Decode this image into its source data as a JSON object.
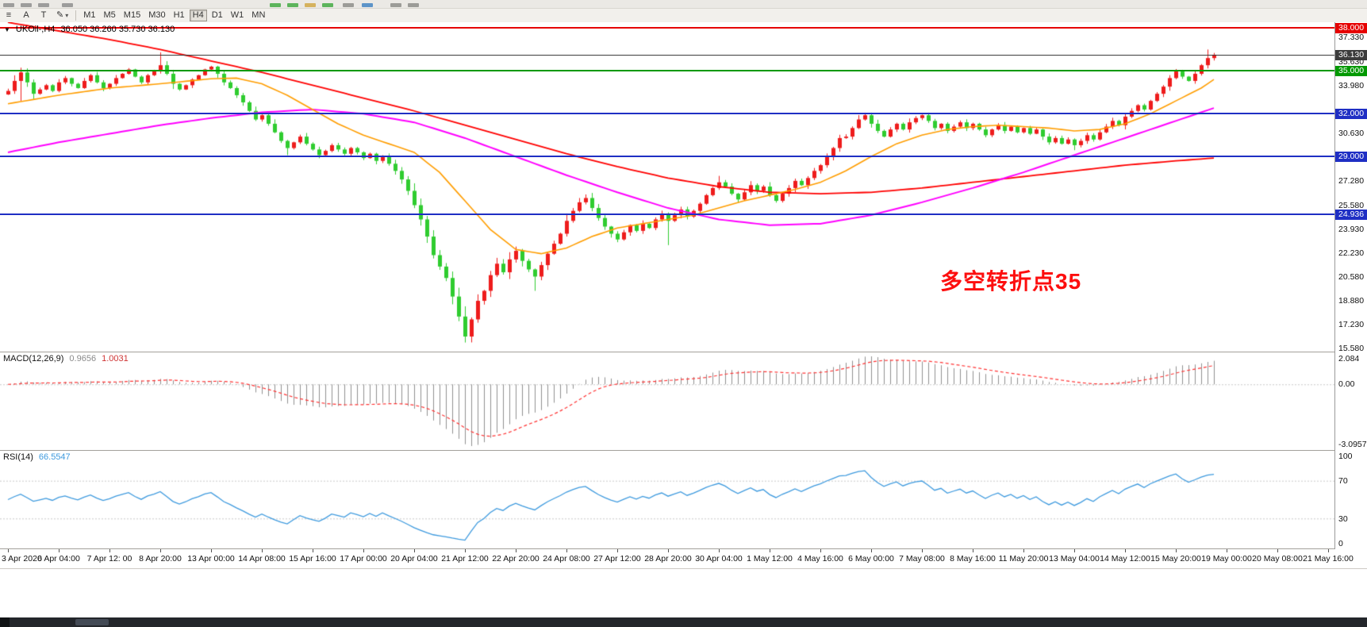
{
  "toolbar": {
    "tools": [
      {
        "name": "chart-list",
        "glyph": "≡"
      },
      {
        "name": "text-label",
        "glyph": "A"
      },
      {
        "name": "text-box",
        "glyph": "T"
      },
      {
        "name": "draw-tools",
        "glyph": "✎",
        "dropdown": "▾"
      }
    ],
    "timeframes": [
      "M1",
      "M5",
      "M15",
      "M30",
      "H1",
      "H4",
      "D1",
      "W1",
      "MN"
    ],
    "active_timeframe": "H4"
  },
  "chart": {
    "menu_arrow": "▼",
    "symbol_label": "UKOil-,H4",
    "quote": "36.050 36.260 35.730 36.130",
    "annotation": "多空转折点35",
    "price_scale_labels": [
      {
        "text": "37.330",
        "price": 37.33
      },
      {
        "text": "35.630",
        "price": 35.63
      },
      {
        "text": "33.980",
        "price": 33.98
      },
      {
        "text": "30.630",
        "price": 30.63
      },
      {
        "text": "27.280",
        "price": 27.28
      },
      {
        "text": "25.580",
        "price": 25.58
      },
      {
        "text": "23.930",
        "price": 23.93
      },
      {
        "text": "22.230",
        "price": 22.23
      },
      {
        "text": "20.580",
        "price": 20.58
      },
      {
        "text": "18.880",
        "price": 18.88
      },
      {
        "text": "17.230",
        "price": 17.23
      },
      {
        "text": "15.580",
        "price": 15.58
      }
    ],
    "time_labels": [
      "3 Apr 2020",
      "6 Apr 04:00",
      "7 Apr 12: 00",
      "8 Apr 20:00",
      "13 Apr 00:00",
      "14 Apr 08:00",
      "15 Apr 16:00",
      "17 Apr 00:00",
      "20 Apr 04:00",
      "21 Apr 12:00",
      "22 Apr 20:00",
      "24 Apr 08:00",
      "27 Apr 12:00",
      "28 Apr 20:00",
      "30 Apr 04:00",
      "1 May 12:00",
      "4 May 16:00",
      "6 May 00:00",
      "7 May 08:00",
      "8 May 16:00",
      "11 May 20:00",
      "13 May 04:00",
      "14 May 12:00",
      "15 May 20:00",
      "19 May 00:00",
      "20 May 08:00",
      "21 May 16:00"
    ]
  },
  "indicators": {
    "macd": {
      "label": "MACD(12,26,9)",
      "value1": "0.9656",
      "value2": "1.0031",
      "scale_top": "2.084",
      "scale_zero": "0.00",
      "scale_bottom": "-3.0957"
    },
    "rsi": {
      "label": "RSI(14)",
      "value": "66.5547",
      "scale_100": "100",
      "scale_70": "70",
      "scale_30": "30",
      "scale_0": "0"
    }
  },
  "colors": {
    "bull": "#ee1c1c",
    "bear": "#2fcc2f",
    "ma_fast": "#ff9d00",
    "ma_mid": "#ff00ff",
    "ma_slow": "#ff0000",
    "macd_hist": "#909090",
    "macd_signal": "#ff3333",
    "rsi_line": "#3e9ade",
    "level_red": "#e60000",
    "level_green": "#009900",
    "level_blue": "#1f2fc4",
    "current": "#3c3c3c"
  },
  "chart_data": {
    "type": "candlestick",
    "symbol": "UKOil-",
    "timeframe": "H4",
    "ylim": [
      15.4,
      38.3
    ],
    "closes": [
      33.6,
      34.3,
      34.9,
      34.2,
      33.4,
      33.7,
      34.0,
      33.6,
      34.2,
      34.5,
      34.1,
      33.8,
      34.3,
      34.7,
      34.2,
      33.8,
      34.1,
      34.5,
      34.8,
      35.1,
      34.6,
      34.2,
      34.7,
      35.0,
      35.4,
      34.8,
      34.1,
      33.7,
      34.0,
      34.4,
      34.7,
      35.1,
      35.3,
      34.8,
      34.2,
      33.8,
      33.3,
      32.8,
      32.2,
      31.6,
      31.9,
      31.3,
      30.7,
      30.1,
      29.6,
      30.0,
      30.4,
      29.9,
      29.5,
      29.1,
      29.4,
      29.8,
      29.5,
      29.2,
      29.6,
      29.3,
      28.9,
      29.2,
      28.7,
      29.0,
      28.5,
      28.0,
      27.4,
      26.6,
      25.6,
      24.6,
      23.4,
      22.1,
      21.3,
      20.5,
      19.2,
      17.8,
      16.4,
      17.6,
      18.9,
      19.6,
      20.7,
      21.5,
      20.9,
      21.8,
      22.4,
      21.7,
      21.1,
      20.6,
      21.4,
      22.2,
      22.9,
      23.6,
      24.5,
      25.2,
      25.8,
      26.1,
      25.4,
      24.7,
      24.1,
      23.6,
      23.2,
      23.7,
      24.2,
      23.8,
      24.3,
      24.0,
      24.6,
      25.0,
      24.5,
      24.9,
      25.3,
      24.8,
      25.2,
      25.7,
      26.3,
      26.8,
      27.2,
      26.9,
      26.4,
      26.0,
      26.5,
      27.0,
      26.6,
      26.9,
      26.3,
      25.9,
      26.4,
      26.8,
      27.3,
      27.0,
      27.5,
      28.0,
      28.4,
      29.0,
      29.6,
      30.3,
      30.4,
      31.0,
      31.6,
      31.9,
      31.3,
      30.8,
      30.4,
      30.9,
      31.3,
      30.9,
      31.4,
      31.7,
      31.9,
      31.5,
      31.0,
      31.3,
      30.8,
      31.1,
      31.4,
      31.0,
      31.3,
      30.9,
      30.5,
      30.9,
      31.2,
      30.8,
      31.1,
      30.7,
      31.0,
      30.6,
      30.9,
      30.4,
      30.0,
      30.3,
      29.9,
      30.2,
      29.8,
      30.1,
      30.5,
      30.2,
      30.7,
      31.1,
      31.5,
      31.2,
      31.8,
      32.2,
      32.6,
      32.3,
      32.9,
      33.4,
      33.9,
      34.5,
      35.0,
      34.6,
      34.3,
      34.8,
      35.4,
      35.9,
      36.13
    ],
    "extremes": [
      {
        "i": 2,
        "low": 32.9
      },
      {
        "i": 24,
        "high": 36.3
      },
      {
        "i": 44,
        "low": 29.1
      },
      {
        "i": 72,
        "low": 15.98
      },
      {
        "i": 83,
        "low": 19.6
      },
      {
        "i": 91,
        "high": 26.35
      },
      {
        "i": 104,
        "low": 22.8
      },
      {
        "i": 112,
        "high": 27.65
      },
      {
        "i": 135,
        "high": 32.05
      },
      {
        "i": 144,
        "high": 31.95
      },
      {
        "i": 168,
        "low": 29.45
      },
      {
        "i": 189,
        "high": 36.5
      },
      {
        "i": 190,
        "high": 36.26,
        "low": 35.73
      }
    ],
    "levels": [
      {
        "label": "38.000",
        "price": 38.0,
        "color": "#e60000"
      },
      {
        "label": "35.000",
        "price": 35.0,
        "color": "#009900"
      },
      {
        "label": "32.000",
        "price": 32.0,
        "color": "#1f2fc4"
      },
      {
        "label": "29.000",
        "price": 29.0,
        "color": "#1f2fc4"
      },
      {
        "label": "24.936",
        "price": 24.936,
        "color": "#1f2fc4"
      },
      {
        "label": "36.130",
        "price": 36.13,
        "color": "#3c3c3c",
        "current": true
      }
    ],
    "ma_orange": [
      [
        0,
        32.7
      ],
      [
        8,
        33.3
      ],
      [
        16,
        33.8
      ],
      [
        24,
        34.1
      ],
      [
        32,
        34.45
      ],
      [
        36,
        34.5
      ],
      [
        40,
        34.1
      ],
      [
        44,
        33.3
      ],
      [
        48,
        32.3
      ],
      [
        52,
        31.3
      ],
      [
        56,
        30.5
      ],
      [
        60,
        29.9
      ],
      [
        64,
        29.3
      ],
      [
        68,
        27.9
      ],
      [
        72,
        25.9
      ],
      [
        76,
        23.9
      ],
      [
        80,
        22.5
      ],
      [
        84,
        22.2
      ],
      [
        88,
        22.6
      ],
      [
        92,
        23.4
      ],
      [
        96,
        24.0
      ],
      [
        100,
        24.3
      ],
      [
        104,
        24.6
      ],
      [
        108,
        24.9
      ],
      [
        112,
        25.4
      ],
      [
        116,
        25.9
      ],
      [
        120,
        26.3
      ],
      [
        124,
        26.7
      ],
      [
        128,
        27.2
      ],
      [
        132,
        28.0
      ],
      [
        136,
        29.0
      ],
      [
        140,
        29.9
      ],
      [
        144,
        30.5
      ],
      [
        148,
        30.9
      ],
      [
        152,
        31.1
      ],
      [
        156,
        31.2
      ],
      [
        160,
        31.1
      ],
      [
        164,
        31.0
      ],
      [
        168,
        30.8
      ],
      [
        172,
        30.9
      ],
      [
        176,
        31.3
      ],
      [
        180,
        32.0
      ],
      [
        184,
        32.9
      ],
      [
        188,
        33.8
      ],
      [
        190,
        34.4
      ]
    ],
    "ma_magenta": [
      [
        0,
        29.3
      ],
      [
        8,
        30.0
      ],
      [
        16,
        30.6
      ],
      [
        24,
        31.2
      ],
      [
        32,
        31.7
      ],
      [
        40,
        32.1
      ],
      [
        48,
        32.3
      ],
      [
        56,
        32.0
      ],
      [
        64,
        31.4
      ],
      [
        72,
        30.3
      ],
      [
        80,
        29.0
      ],
      [
        88,
        27.7
      ],
      [
        96,
        26.5
      ],
      [
        104,
        25.4
      ],
      [
        112,
        24.6
      ],
      [
        120,
        24.2
      ],
      [
        128,
        24.3
      ],
      [
        136,
        24.9
      ],
      [
        144,
        25.8
      ],
      [
        152,
        26.8
      ],
      [
        160,
        27.9
      ],
      [
        168,
        29.1
      ],
      [
        176,
        30.3
      ],
      [
        184,
        31.5
      ],
      [
        190,
        32.4
      ]
    ],
    "ma_red": [
      [
        0,
        38.4
      ],
      [
        8,
        37.8
      ],
      [
        16,
        37.2
      ],
      [
        24,
        36.5
      ],
      [
        32,
        35.7
      ],
      [
        40,
        34.9
      ],
      [
        48,
        34.0
      ],
      [
        56,
        33.1
      ],
      [
        64,
        32.2
      ],
      [
        72,
        31.2
      ],
      [
        80,
        30.2
      ],
      [
        88,
        29.2
      ],
      [
        96,
        28.3
      ],
      [
        104,
        27.5
      ],
      [
        112,
        26.9
      ],
      [
        120,
        26.5
      ],
      [
        128,
        26.4
      ],
      [
        136,
        26.5
      ],
      [
        144,
        26.8
      ],
      [
        152,
        27.2
      ],
      [
        160,
        27.6
      ],
      [
        168,
        28.0
      ],
      [
        176,
        28.4
      ],
      [
        184,
        28.7
      ],
      [
        190,
        28.9
      ]
    ],
    "macd_params": [
      12,
      26,
      9
    ],
    "rsi_period": 14,
    "rsi_levels": [
      30,
      70
    ]
  }
}
